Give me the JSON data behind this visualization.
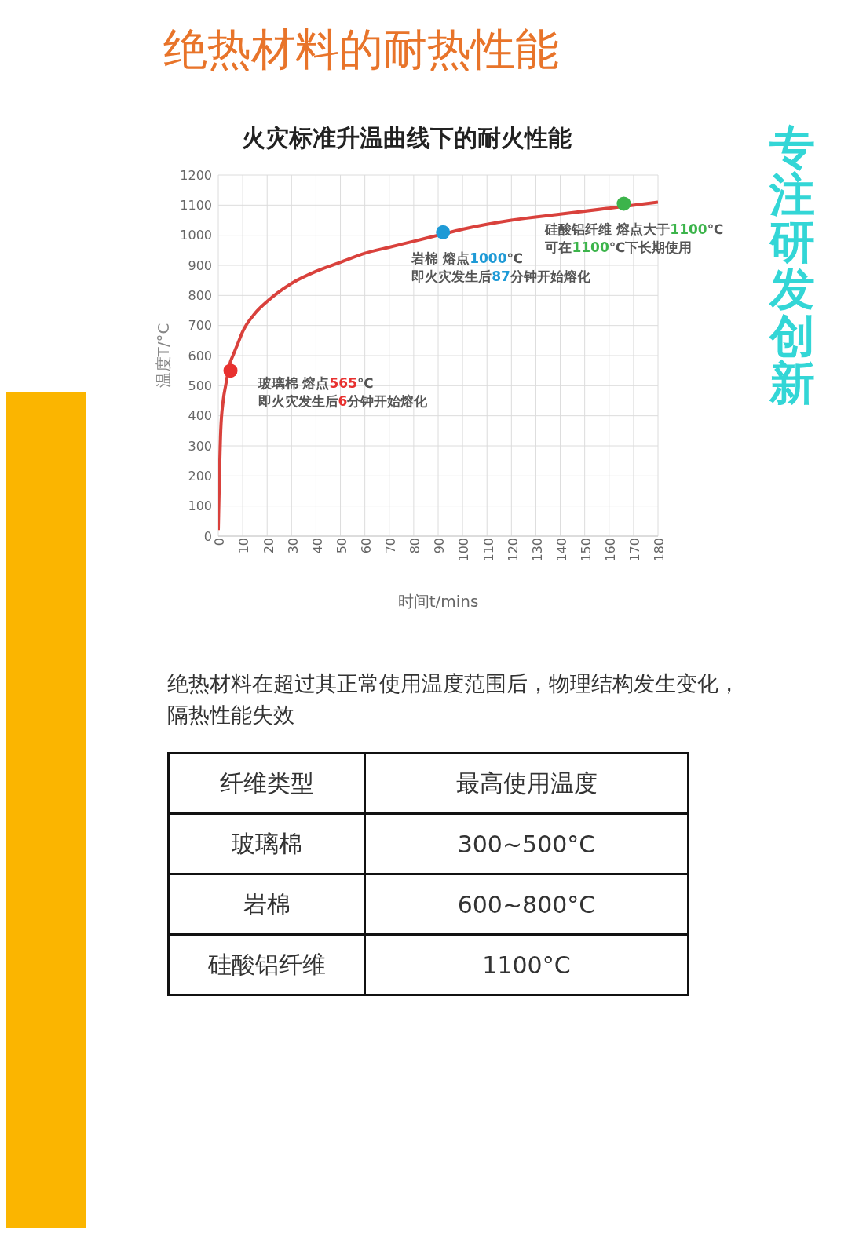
{
  "chart_data": {
    "type": "line",
    "title": "绝热材料的耐热性能",
    "subtitle": "火灾标准升温曲线下的耐火性能",
    "xlabel": "时间t/mins",
    "ylabel": "温度T/°C",
    "xlim": [
      0,
      180
    ],
    "xticks": [
      0,
      10,
      20,
      30,
      40,
      50,
      60,
      70,
      80,
      90,
      100,
      110,
      120,
      130,
      140,
      150,
      160,
      170,
      180
    ],
    "ylim": [
      0,
      1200
    ],
    "yticks": [
      0,
      100,
      200,
      300,
      400,
      500,
      600,
      700,
      800,
      900,
      1000,
      1100,
      1200
    ],
    "grid": true,
    "line_style": "solid",
    "series": [
      {
        "type": "line",
        "marker": "none",
        "color": "#d9413c",
        "x": [
          0,
          1,
          2,
          3,
          5,
          6,
          8,
          10,
          15,
          20,
          30,
          40,
          50,
          60,
          70,
          80,
          90,
          100,
          120,
          140,
          160,
          180
        ],
        "values": [
          20,
          350,
          450,
          500,
          580,
          600,
          640,
          680,
          740,
          780,
          840,
          880,
          910,
          940,
          960,
          980,
          1000,
          1020,
          1050,
          1070,
          1090,
          1110
        ]
      },
      {
        "type": "scatter",
        "marker": "circle",
        "x": [
          5,
          92,
          166
        ],
        "values": [
          550,
          1010,
          1105
        ],
        "colors": [
          "#e8312f",
          "#1e9ad6",
          "#3cb44b"
        ]
      }
    ],
    "annotations": [
      {
        "text": "玻璃棉 熔点565℃",
        "x": 5,
        "y": 550
      },
      "即火灾发生后6分钟开始熔化",
      {
        "text": "岩棉 熔点1000℃",
        "x": 92,
        "y": 1010
      },
      "即火灾发生后87分钟开始熔化",
      {
        "text": "硅酸铝纤维 熔点大于1100℃",
        "x": 166,
        "y": 1105
      },
      "可在1100℃下长期使用",
      "专注研发创新",
      "绝热材料在超过其正常使用温度范围后，物理结构发生变化，隔热性能失效",
      "纤维类型",
      "最高使用温度",
      "玻璃棉",
      "300~500°C",
      "岩棉",
      "600~800°C",
      "硅酸铝纤维",
      "1100°C"
    ]
  }
}
